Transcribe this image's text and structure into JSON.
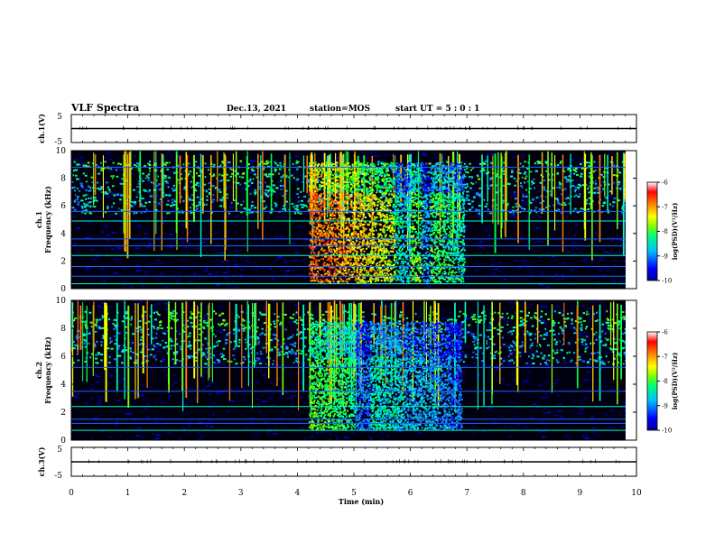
{
  "header": {
    "title": "VLF Spectra",
    "date": "Dec.13, 2021",
    "station": "station=MOS",
    "start_ut": "start  UT  =  5 : 0 : 1"
  },
  "chart_data": [
    {
      "type": "line",
      "id": "ch1-waveform",
      "ylabel": "ch.1(V)",
      "ylim": [
        -5,
        5
      ],
      "yticks": [
        5,
        -5
      ],
      "xlim": [
        0,
        10
      ],
      "series": [
        {
          "x": [
            0,
            10
          ],
          "y": [
            0,
            0
          ]
        }
      ]
    },
    {
      "type": "heatmap",
      "id": "ch1-spectrogram",
      "ylabel": "ch.1\nFrequency (kHz)",
      "ylabel_lines": [
        "ch.1",
        "Frequency (kHz)"
      ],
      "xlim": [
        0,
        10
      ],
      "ylim": [
        0,
        10
      ],
      "yticks": [
        0,
        2,
        4,
        6,
        8,
        10
      ],
      "burst": {
        "start_min": 4.2,
        "end_min": 6.95,
        "fmin_khz": 0.5,
        "fmax_khz": 9.2
      },
      "colorbar": {
        "label": "log(PSD)(V²/Hz)",
        "range": [
          -10,
          -6
        ],
        "ticks": [
          "-6",
          "-7",
          "-8",
          "-9",
          "-10"
        ],
        "colormap": [
          "#00008f",
          "#0000ff",
          "#00bfff",
          "#00ff7f",
          "#7fff00",
          "#ffff00",
          "#ff7f00",
          "#ff0000",
          "#ffffff"
        ]
      }
    },
    {
      "type": "heatmap",
      "id": "ch2-spectrogram",
      "ylabel": "ch.2\nFrequency (kHz)",
      "ylabel_lines": [
        "ch.2",
        "Frequency (kHz)"
      ],
      "xlim": [
        0,
        10
      ],
      "ylim": [
        0,
        10
      ],
      "yticks": [
        0,
        2,
        4,
        6,
        8,
        10
      ],
      "burst": {
        "start_min": 4.2,
        "end_min": 6.9,
        "fmin_khz": 0.8,
        "fmax_khz": 8.5
      },
      "colorbar": {
        "label": "log(PSD)(V²/Hz)",
        "range": [
          -10,
          -6
        ],
        "ticks": [
          "-6",
          "-7",
          "-8",
          "-9",
          "-10"
        ],
        "colormap": [
          "#00008f",
          "#0000ff",
          "#00bfff",
          "#00ff7f",
          "#7fff00",
          "#ffff00",
          "#ff7f00",
          "#ff0000",
          "#ffffff"
        ]
      }
    },
    {
      "type": "line",
      "id": "ch3-waveform",
      "ylabel": "ch.3(V)",
      "ylim": [
        -5,
        5
      ],
      "yticks": [
        5,
        -5
      ],
      "xlim": [
        0,
        10
      ],
      "series": [
        {
          "x": [
            0,
            10
          ],
          "y": [
            0,
            0
          ]
        }
      ]
    }
  ],
  "x_axis": {
    "label": "Time (min)",
    "ticks": [
      "0",
      "1",
      "2",
      "3",
      "4",
      "5",
      "6",
      "7",
      "8",
      "9",
      "10"
    ]
  }
}
